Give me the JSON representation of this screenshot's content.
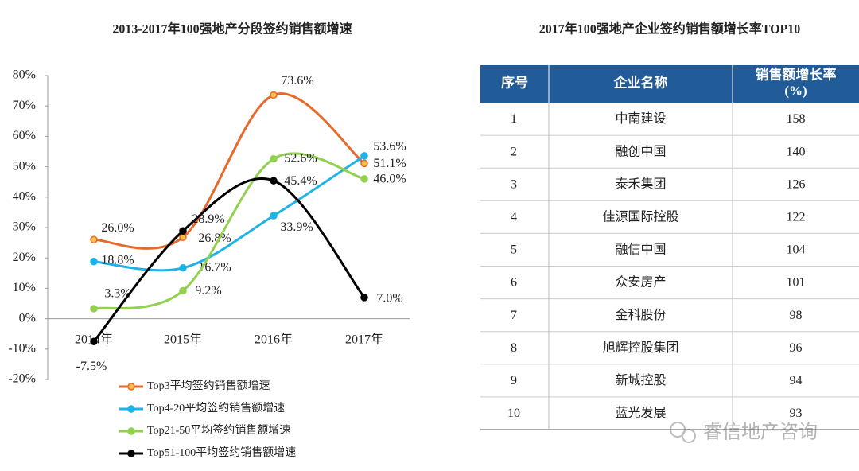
{
  "chart_data": {
    "type": "line",
    "title": "2013-2017年100强地产分段签约销售额增速",
    "categories": [
      "2014年",
      "2015年",
      "2016年",
      "2017年"
    ],
    "ylim": [
      -20,
      80
    ],
    "yticks": [
      {
        "value": -20,
        "label": "-20%"
      },
      {
        "value": -10,
        "label": "-10%"
      },
      {
        "value": 0,
        "label": "0%"
      },
      {
        "value": 10,
        "label": "10%"
      },
      {
        "value": 20,
        "label": "20%"
      },
      {
        "value": 30,
        "label": "30%"
      },
      {
        "value": 40,
        "label": "40%"
      },
      {
        "value": 50,
        "label": "50%"
      },
      {
        "value": 60,
        "label": "60%"
      },
      {
        "value": 70,
        "label": "70%"
      },
      {
        "value": 80,
        "label": "80%"
      }
    ],
    "grid": false,
    "series": [
      {
        "name": "Top3平均签约销售额增速",
        "color": "#E8692A",
        "marker_fill": "#F8C046",
        "values": [
          26.0,
          26.8,
          73.6,
          51.1
        ],
        "value_labels": [
          "26.0%",
          "26.8%",
          "73.6%",
          "51.1%"
        ]
      },
      {
        "name": "Top4-20平均签约销售额增速",
        "color": "#1EB2E8",
        "marker_fill": "#1EB2E8",
        "values": [
          18.8,
          16.7,
          33.9,
          53.6
        ],
        "value_labels": [
          "18.8%",
          "16.7%",
          "33.9%",
          "53.6%"
        ]
      },
      {
        "name": "Top21-50平均签约销售额增速",
        "color": "#92D050",
        "marker_fill": "#92D050",
        "values": [
          3.3,
          9.2,
          52.6,
          46.0
        ],
        "value_labels": [
          "3.3%",
          "9.2%",
          "52.6%",
          "46.0%"
        ]
      },
      {
        "name": "Top51-100平均签约销售额增速",
        "color": "#000000",
        "marker_fill": "#000000",
        "values": [
          -7.5,
          28.9,
          45.4,
          7.0
        ],
        "value_labels": [
          "-7.5%",
          "28.9%",
          "45.4%",
          "7.0%"
        ]
      }
    ]
  },
  "table": {
    "title": "2017年100强地产企业签约销售额增长率TOP10",
    "header": [
      [
        "序号"
      ],
      [
        "企业名称"
      ],
      [
        "销售额增长率",
        "(%)"
      ]
    ],
    "rows": [
      [
        1,
        "中南建设",
        158
      ],
      [
        2,
        "融创中国",
        140
      ],
      [
        3,
        "泰禾集团",
        126
      ],
      [
        4,
        "佳源国际控股",
        122
      ],
      [
        5,
        "融信中国",
        104
      ],
      [
        6,
        "众安房产",
        101
      ],
      [
        7,
        "金科股份",
        98
      ],
      [
        8,
        "旭辉控股集团",
        96
      ],
      [
        9,
        "新城控股",
        94
      ],
      [
        10,
        "蓝光发展",
        93
      ]
    ]
  },
  "watermark": "睿信地产咨询"
}
